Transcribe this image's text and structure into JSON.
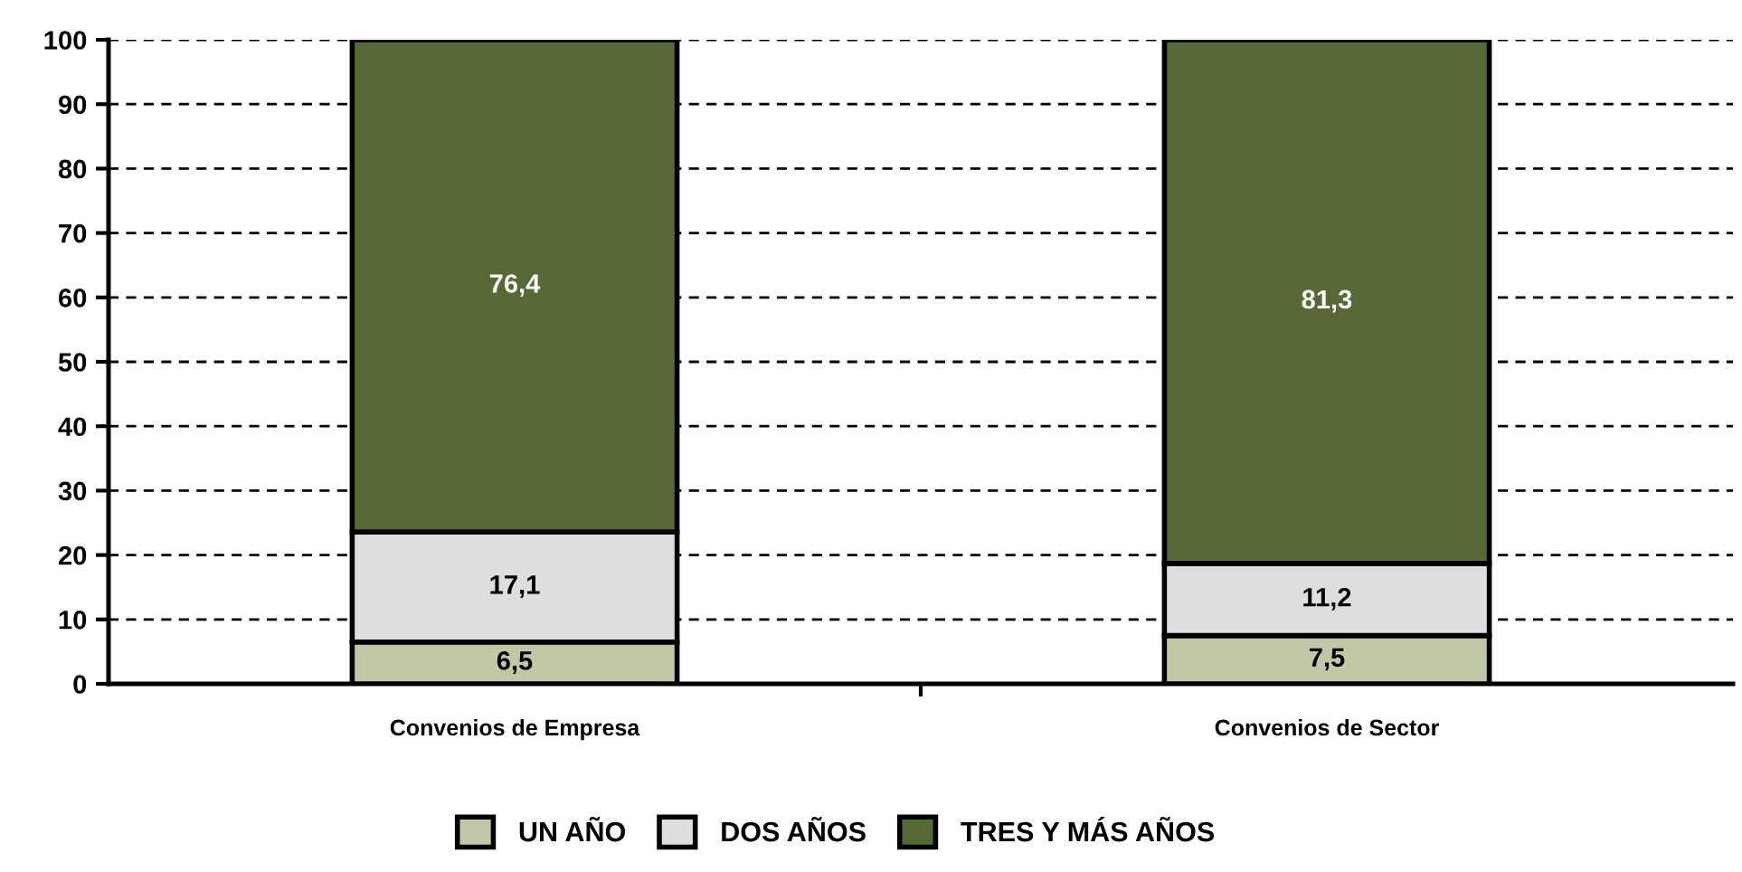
{
  "chart_data": {
    "type": "bar",
    "stacked": true,
    "categories": [
      "Convenios de Empresa",
      "Convenios de Sector"
    ],
    "series": [
      {
        "name": "UN AÑO",
        "color": "#c0c8a8",
        "values": [
          6.5,
          7.5
        ],
        "value_labels": [
          "6,5",
          "7,5"
        ]
      },
      {
        "name": "DOS AÑOS",
        "color": "#dedede",
        "values": [
          17.1,
          11.2
        ],
        "value_labels": [
          "17,1",
          "11,2"
        ]
      },
      {
        "name": "TRES Y MÁS AÑOS",
        "color": "#566935",
        "values": [
          76.4,
          81.3
        ],
        "value_labels": [
          "76,4",
          "81,3"
        ]
      }
    ],
    "ylim": [
      0,
      100
    ],
    "yticks": [
      0,
      10,
      20,
      30,
      40,
      50,
      60,
      70,
      80,
      90,
      100
    ],
    "grid": "y",
    "legend": "bottom"
  }
}
